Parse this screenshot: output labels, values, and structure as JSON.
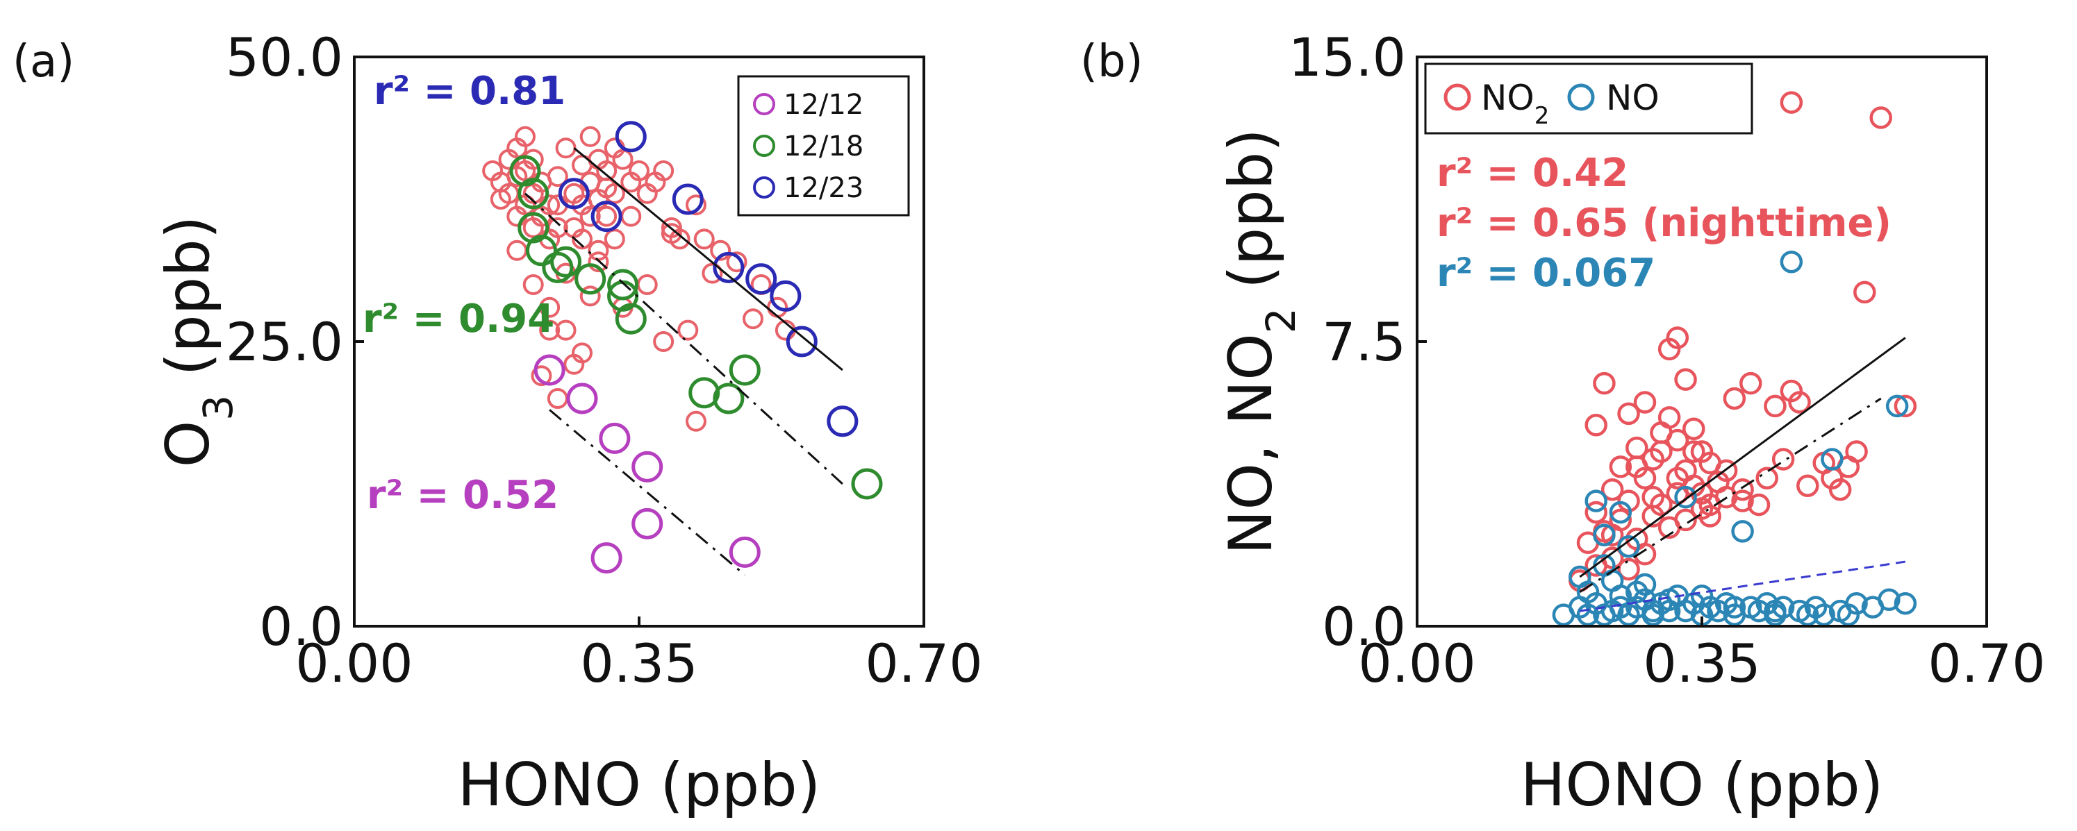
{
  "chart_data": [
    {
      "panel": "(a)",
      "type": "scatter",
      "xlabel": "HONO (ppb)",
      "ylabel": "O3 (ppb)",
      "xlim": [
        0.0,
        0.7
      ],
      "ylim": [
        0.0,
        50.0
      ],
      "xticks": [
        "0.00",
        "0.35",
        "0.70"
      ],
      "yticks": [
        "0.0",
        "25.0",
        "50.0"
      ],
      "legend": "top-right",
      "colors": {
        "background_points": "#e8626a",
        "12/12": "#b53fbf",
        "12/18": "#2e8b2e",
        "12/23": "#2a2ab5"
      },
      "background_points": [
        [
          0.17,
          40
        ],
        [
          0.18,
          37.5
        ],
        [
          0.18,
          39
        ],
        [
          0.19,
          41
        ],
        [
          0.19,
          38
        ],
        [
          0.2,
          42
        ],
        [
          0.2,
          39.5
        ],
        [
          0.2,
          36
        ],
        [
          0.21,
          40
        ],
        [
          0.21,
          37
        ],
        [
          0.21,
          43
        ],
        [
          0.22,
          41
        ],
        [
          0.22,
          38
        ],
        [
          0.22,
          35
        ],
        [
          0.23,
          39
        ],
        [
          0.23,
          36
        ],
        [
          0.24,
          37
        ],
        [
          0.24,
          34
        ],
        [
          0.25,
          39.5
        ],
        [
          0.25,
          37
        ],
        [
          0.25,
          35
        ],
        [
          0.26,
          42
        ],
        [
          0.27,
          38
        ],
        [
          0.27,
          35
        ],
        [
          0.28,
          40.5
        ],
        [
          0.28,
          37
        ],
        [
          0.28,
          34
        ],
        [
          0.29,
          43
        ],
        [
          0.29,
          39
        ],
        [
          0.29,
          36
        ],
        [
          0.3,
          41
        ],
        [
          0.3,
          37.5
        ],
        [
          0.3,
          33
        ],
        [
          0.31,
          40
        ],
        [
          0.31,
          36
        ],
        [
          0.32,
          42
        ],
        [
          0.32,
          38
        ],
        [
          0.32,
          34
        ],
        [
          0.33,
          41
        ],
        [
          0.34,
          39
        ],
        [
          0.35,
          40
        ],
        [
          0.36,
          38
        ],
        [
          0.38,
          40
        ],
        [
          0.39,
          35
        ],
        [
          0.39,
          34.5
        ],
        [
          0.4,
          34
        ],
        [
          0.42,
          37
        ],
        [
          0.43,
          34
        ],
        [
          0.45,
          33
        ],
        [
          0.47,
          32
        ],
        [
          0.5,
          30
        ],
        [
          0.52,
          28
        ],
        [
          0.53,
          26
        ],
        [
          0.2,
          33
        ],
        [
          0.22,
          30
        ],
        [
          0.24,
          28
        ],
        [
          0.26,
          26
        ],
        [
          0.28,
          24
        ],
        [
          0.3,
          32
        ],
        [
          0.33,
          28
        ],
        [
          0.36,
          30
        ],
        [
          0.38,
          25
        ],
        [
          0.41,
          26
        ],
        [
          0.44,
          31
        ],
        [
          0.49,
          27
        ],
        [
          0.23,
          22
        ],
        [
          0.25,
          20
        ],
        [
          0.27,
          23
        ],
        [
          0.24,
          26
        ],
        [
          0.42,
          18
        ],
        [
          0.31,
          38.5
        ],
        [
          0.34,
          36
        ],
        [
          0.37,
          39
        ],
        [
          0.26,
          31
        ],
        [
          0.29,
          29
        ]
      ],
      "series": [
        {
          "name": "12/12",
          "r2": "r² = 0.52",
          "points": [
            [
              0.24,
              22.5
            ],
            [
              0.28,
              20
            ],
            [
              0.32,
              16.5
            ],
            [
              0.36,
              14
            ],
            [
              0.31,
              6
            ],
            [
              0.36,
              9
            ],
            [
              0.48,
              6.5
            ]
          ]
        },
        {
          "name": "12/18",
          "r2": "r² = 0.94",
          "points": [
            [
              0.21,
              40
            ],
            [
              0.22,
              38
            ],
            [
              0.22,
              35
            ],
            [
              0.23,
              33
            ],
            [
              0.26,
              32
            ],
            [
              0.25,
              31.5
            ],
            [
              0.29,
              30.5
            ],
            [
              0.33,
              30
            ],
            [
              0.33,
              29
            ],
            [
              0.34,
              27
            ],
            [
              0.43,
              20.5
            ],
            [
              0.46,
              20
            ],
            [
              0.48,
              22.5
            ],
            [
              0.63,
              12.5
            ]
          ]
        },
        {
          "name": "12/23",
          "r2": "r² = 0.81",
          "points": [
            [
              0.34,
              43
            ],
            [
              0.27,
              38
            ],
            [
              0.31,
              36
            ],
            [
              0.41,
              37.5
            ],
            [
              0.46,
              31.5
            ],
            [
              0.5,
              30.5
            ],
            [
              0.53,
              29
            ],
            [
              0.55,
              25
            ],
            [
              0.6,
              18
            ]
          ]
        }
      ],
      "fits": [
        {
          "series": "12/23",
          "style": "solid",
          "from": [
            0.27,
            42
          ],
          "to": [
            0.6,
            22.5
          ]
        },
        {
          "series": "12/18",
          "style": "dashdot",
          "from": [
            0.21,
            38
          ],
          "to": [
            0.6,
            12.5
          ]
        },
        {
          "series": "12/12",
          "style": "dashdot",
          "from": [
            0.24,
            19
          ],
          "to": [
            0.48,
            4.5
          ]
        }
      ]
    },
    {
      "panel": "(b)",
      "type": "scatter",
      "xlabel": "HONO (ppb)",
      "ylabel": "NO, NO2 (ppb)",
      "xlim": [
        0.0,
        0.7
      ],
      "ylim": [
        0.0,
        15.0
      ],
      "xticks": [
        "0.00",
        "0.35",
        "0.70"
      ],
      "yticks": [
        "0.0",
        "7.5",
        "15.0"
      ],
      "legend": "top-left",
      "colors": {
        "NO2": "#e8545c",
        "NO": "#2b86b5",
        "nighttime_fit": "#3a3ad0"
      },
      "r2_labels": [
        "r² = 0.42",
        "r² = 0.65 (nighttime)",
        "r² = 0.067"
      ],
      "series": [
        {
          "name": "NO2",
          "points": [
            [
              0.2,
              1.2
            ],
            [
              0.21,
              2.2
            ],
            [
              0.22,
              5.3
            ],
            [
              0.22,
              3
            ],
            [
              0.23,
              6.4
            ],
            [
              0.23,
              2.5
            ],
            [
              0.24,
              1.8
            ],
            [
              0.24,
              3.6
            ],
            [
              0.25,
              4.2
            ],
            [
              0.25,
              2.8
            ],
            [
              0.26,
              5.6
            ],
            [
              0.26,
              3.3
            ],
            [
              0.27,
              4.7
            ],
            [
              0.27,
              2.3
            ],
            [
              0.28,
              5.9
            ],
            [
              0.28,
              3.9
            ],
            [
              0.28,
              1.9
            ],
            [
              0.29,
              4.4
            ],
            [
              0.29,
              2.9
            ],
            [
              0.3,
              5.1
            ],
            [
              0.3,
              3.2
            ],
            [
              0.31,
              7.3
            ],
            [
              0.31,
              5.5
            ],
            [
              0.31,
              2.6
            ],
            [
              0.32,
              7.6
            ],
            [
              0.32,
              4.9
            ],
            [
              0.32,
              3.5
            ],
            [
              0.33,
              6.5
            ],
            [
              0.33,
              4.1
            ],
            [
              0.33,
              2.8
            ],
            [
              0.34,
              5.2
            ],
            [
              0.34,
              3.7
            ],
            [
              0.35,
              4.6
            ],
            [
              0.35,
              3.1
            ],
            [
              0.36,
              4.3
            ],
            [
              0.36,
              2.9
            ],
            [
              0.37,
              3.8
            ],
            [
              0.38,
              4.1
            ],
            [
              0.38,
              3.4
            ],
            [
              0.39,
              6
            ],
            [
              0.4,
              3.6
            ],
            [
              0.41,
              6.4
            ],
            [
              0.42,
              3.2
            ],
            [
              0.43,
              3.9
            ],
            [
              0.44,
              5.8
            ],
            [
              0.45,
              4.4
            ],
            [
              0.46,
              6.2
            ],
            [
              0.47,
              5.9
            ],
            [
              0.48,
              3.7
            ],
            [
              0.5,
              4.3
            ],
            [
              0.51,
              3.9
            ],
            [
              0.52,
              3.6
            ],
            [
              0.53,
              4.2
            ],
            [
              0.54,
              4.6
            ],
            [
              0.55,
              8.8
            ],
            [
              0.6,
              5.8
            ],
            [
              0.57,
              13.4
            ],
            [
              0.46,
              13.8
            ],
            [
              0.26,
              1.5
            ],
            [
              0.29,
              3.4
            ],
            [
              0.3,
              4.6
            ],
            [
              0.32,
              3.9
            ],
            [
              0.35,
              3.5
            ],
            [
              0.22,
              1.6
            ],
            [
              0.24,
              2.4
            ],
            [
              0.27,
              4.2
            ],
            [
              0.34,
              4.6
            ],
            [
              0.36,
              3.2
            ],
            [
              0.4,
              3.3
            ]
          ]
        },
        {
          "name": "NO",
          "points": [
            [
              0.18,
              0.3
            ],
            [
              0.2,
              0.5
            ],
            [
              0.21,
              0.3
            ],
            [
              0.22,
              0.6
            ],
            [
              0.22,
              3.3
            ],
            [
              0.23,
              1.6
            ],
            [
              0.23,
              2.4
            ],
            [
              0.24,
              0.4
            ],
            [
              0.24,
              1.2
            ],
            [
              0.25,
              0.8
            ],
            [
              0.25,
              3
            ],
            [
              0.26,
              0.3
            ],
            [
              0.26,
              2.1
            ],
            [
              0.27,
              0.5
            ],
            [
              0.28,
              0.7
            ],
            [
              0.28,
              1.1
            ],
            [
              0.29,
              0.3
            ],
            [
              0.3,
              0.6
            ],
            [
              0.31,
              0.4
            ],
            [
              0.32,
              0.8
            ],
            [
              0.33,
              3.4
            ],
            [
              0.33,
              0.4
            ],
            [
              0.34,
              0.6
            ],
            [
              0.35,
              0.3
            ],
            [
              0.36,
              0.5
            ],
            [
              0.37,
              0.4
            ],
            [
              0.38,
              0.6
            ],
            [
              0.39,
              0.3
            ],
            [
              0.4,
              2.5
            ],
            [
              0.41,
              0.5
            ],
            [
              0.42,
              0.4
            ],
            [
              0.43,
              0.6
            ],
            [
              0.44,
              0.3
            ],
            [
              0.45,
              0.5
            ],
            [
              0.46,
              9.6
            ],
            [
              0.47,
              0.4
            ],
            [
              0.49,
              0.5
            ],
            [
              0.5,
              0.3
            ],
            [
              0.51,
              4.4
            ],
            [
              0.52,
              0.4
            ],
            [
              0.54,
              0.6
            ],
            [
              0.56,
              0.5
            ],
            [
              0.58,
              0.7
            ],
            [
              0.59,
              5.8
            ],
            [
              0.6,
              0.6
            ],
            [
              0.2,
              1.3
            ],
            [
              0.21,
              0.9
            ],
            [
              0.23,
              0.3
            ],
            [
              0.25,
              0.5
            ],
            [
              0.27,
              0.9
            ],
            [
              0.29,
              0.4
            ],
            [
              0.31,
              0.7
            ],
            [
              0.35,
              0.8
            ],
            [
              0.39,
              0.5
            ],
            [
              0.44,
              0.4
            ],
            [
              0.48,
              0.3
            ],
            [
              0.53,
              0.3
            ]
          ]
        }
      ],
      "fits": [
        {
          "series": "NO2",
          "style": "solid",
          "from": [
            0.2,
            1.3
          ],
          "to": [
            0.6,
            7.6
          ]
        },
        {
          "series": "NO2 nighttime",
          "style": "dashdot",
          "from": [
            0.2,
            0.9
          ],
          "to": [
            0.57,
            6.0
          ]
        },
        {
          "series": "NO",
          "style": "dashed",
          "from": [
            0.2,
            0.4
          ],
          "to": [
            0.6,
            1.7
          ]
        }
      ]
    }
  ]
}
